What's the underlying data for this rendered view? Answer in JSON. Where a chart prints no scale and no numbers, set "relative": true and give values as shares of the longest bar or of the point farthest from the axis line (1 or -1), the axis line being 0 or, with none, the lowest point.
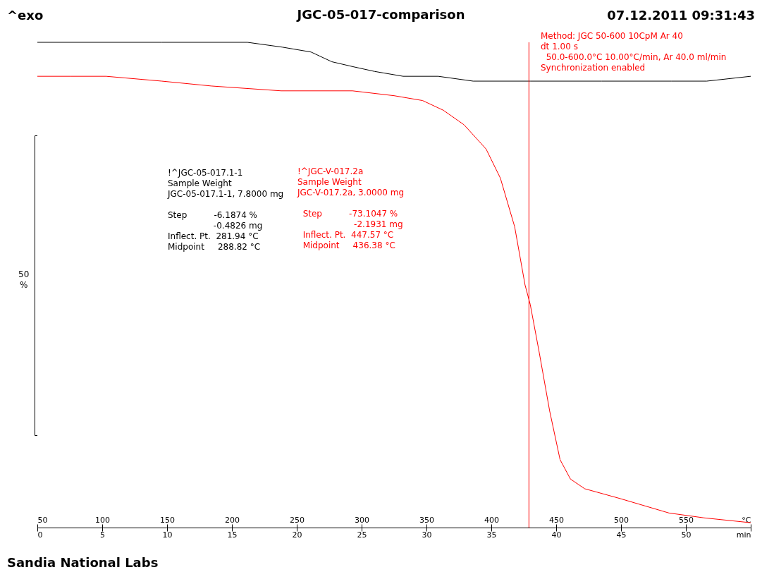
{
  "chart_data": {
    "type": "line",
    "title": "JGC-05-017-comparison",
    "relative": true,
    "ylabel": "50 %",
    "xlim": [
      50,
      600
    ],
    "xticks": [
      50,
      100,
      150,
      200,
      250,
      300,
      350,
      400,
      450,
      500,
      550,
      {
        "value": 600,
        "label": "°C"
      }
    ],
    "x2lim": [
      0,
      55
    ],
    "x2ticks": [
      0,
      5,
      10,
      15,
      20,
      25,
      30,
      35,
      40,
      45,
      50,
      {
        "value": 55,
        "label": "min"
      }
    ],
    "grid": false,
    "marker": "none",
    "line_style": "solid",
    "series": [
      {
        "color": "#000000",
        "x": [
          50,
          146,
          212,
          239,
          261,
          277,
          293,
          310,
          332,
          359,
          386,
          430,
          485,
          539,
          566,
          600
        ],
        "values": [
          1.0,
          1.0,
          1.0,
          0.99,
          0.98,
          0.96,
          0.95,
          0.94,
          0.93,
          0.93,
          0.92,
          0.92,
          0.92,
          0.92,
          0.92,
          0.93
        ]
      },
      {
        "color": "#ff0000",
        "x": [
          50,
          76,
          103,
          146,
          184,
          238,
          293,
          325,
          347,
          363,
          379,
          396,
          407,
          418,
          426,
          430,
          437,
          445,
          453,
          461,
          472,
          499,
          537,
          564,
          600
        ],
        "values": [
          0.93,
          0.93,
          0.93,
          0.92,
          0.91,
          0.9,
          0.9,
          0.89,
          0.88,
          0.86,
          0.83,
          0.78,
          0.72,
          0.62,
          0.5,
          0.46,
          0.36,
          0.24,
          0.14,
          0.1,
          0.08,
          0.06,
          0.03,
          0.02,
          0.01
        ]
      }
    ],
    "ref_lines": [
      {
        "axis": "x",
        "value": 429,
        "color": "#ff0000"
      }
    ],
    "annotations": [
      "^exo",
      "07.12.2011 09:31:43",
      "Method: JGC 50-600 10CpM Ar 40\ndt 1.00 s\n  50.0-600.0°C 10.00°C/min, Ar 40.0 ml/min\nSynchronization enabled",
      "!^JGC-05-017.1-1\nSample Weight\nJGC-05-017.1-1, 7.8000 mg\n\nStep          -6.1874 %\n                 -0.4826 mg\nInflect. Pt.  281.94 °C\nMidpoint     288.82 °C",
      "!^JGC-V-017.2a\nSample Weight\nJGC-V-017.2a, 3.0000 mg\n\n  Step          -73.1047 %\n                     -2.1931 mg\n  Inflect. Pt.  447.57 °C\n  Midpoint     436.38 °C",
      "Sandia National Labs"
    ]
  }
}
